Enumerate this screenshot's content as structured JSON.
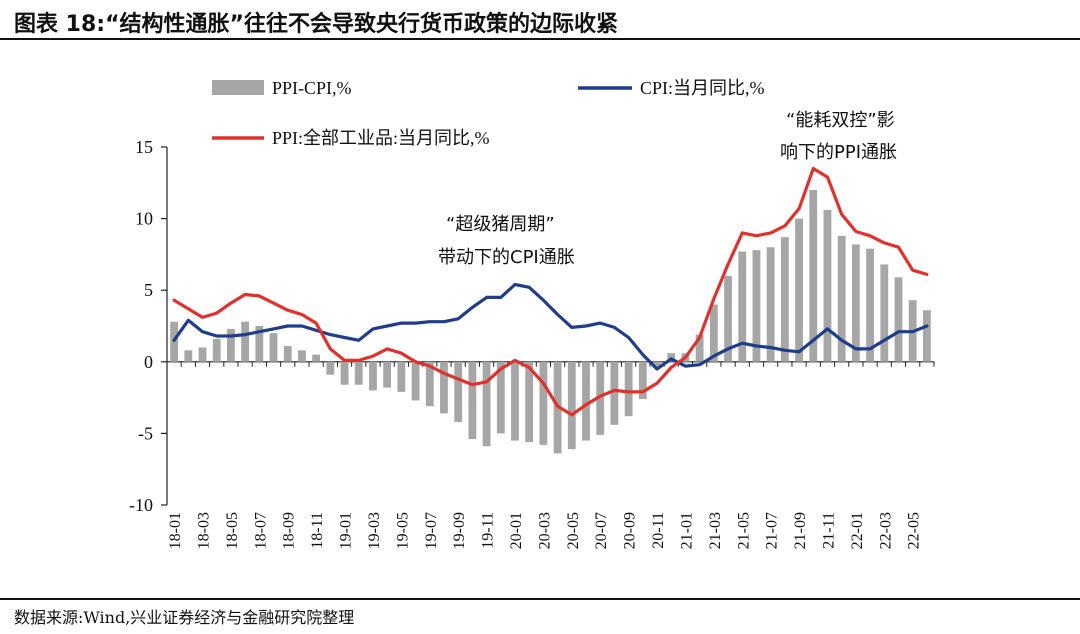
{
  "title": "图表 18:“结构性通胀”往往不会导致央行货币政策的边际收紧",
  "source": "数据来源:Wind,兴业证券经济与金融研究院整理",
  "colors": {
    "bar": "#a6a6a6",
    "cpi": "#1f3d8c",
    "ppi": "#e0312c"
  },
  "chart_data": {
    "type": "bar+line",
    "x": [
      "18-01",
      "18-02",
      "18-03",
      "18-04",
      "18-05",
      "18-06",
      "18-07",
      "18-08",
      "18-09",
      "18-10",
      "18-11",
      "18-12",
      "19-01",
      "19-02",
      "19-03",
      "19-04",
      "19-05",
      "19-06",
      "19-07",
      "19-08",
      "19-09",
      "19-10",
      "19-11",
      "19-12",
      "20-01",
      "20-02",
      "20-03",
      "20-04",
      "20-05",
      "20-06",
      "20-07",
      "20-08",
      "20-09",
      "20-10",
      "20-11",
      "20-12",
      "21-01",
      "21-02",
      "21-03",
      "21-04",
      "21-05",
      "21-06",
      "21-07",
      "21-08",
      "21-09",
      "21-10",
      "21-11",
      "21-12",
      "22-01",
      "22-02",
      "22-03",
      "22-04",
      "22-05",
      "22-06"
    ],
    "tick_labels": [
      "18-01",
      "18-03",
      "18-05",
      "18-07",
      "18-09",
      "18-11",
      "19-01",
      "19-03",
      "19-05",
      "19-07",
      "19-09",
      "19-11",
      "20-01",
      "20-03",
      "20-05",
      "20-07",
      "20-09",
      "20-11",
      "21-01",
      "21-03",
      "21-05",
      "21-07",
      "21-09",
      "21-11",
      "22-01",
      "22-03",
      "22-05"
    ],
    "ylim": [
      -10,
      15
    ],
    "yticks": [
      -10,
      -5,
      0,
      5,
      10,
      15
    ],
    "series": [
      {
        "name": "PPI-CPI,%",
        "kind": "bar",
        "values": [
          2.8,
          0.8,
          1.0,
          1.6,
          2.3,
          2.8,
          2.5,
          2.0,
          1.1,
          0.8,
          0.5,
          -0.9,
          -1.6,
          -1.6,
          -2.0,
          -1.8,
          -2.1,
          -2.7,
          -3.1,
          -3.6,
          -4.2,
          -5.4,
          -5.9,
          -5.0,
          -5.5,
          -5.6,
          -5.8,
          -6.4,
          -6.1,
          -5.5,
          -5.1,
          -4.4,
          -3.8,
          -2.6,
          -0.4,
          0.6,
          0.6,
          1.9,
          4.0,
          6.0,
          7.7,
          7.8,
          8.0,
          8.7,
          10.0,
          12.0,
          10.6,
          8.8,
          8.2,
          7.9,
          6.8,
          5.9,
          4.3,
          3.6
        ]
      },
      {
        "name": "CPI:当月同比,%",
        "kind": "line",
        "values": [
          1.5,
          2.9,
          2.1,
          1.8,
          1.8,
          1.9,
          2.1,
          2.3,
          2.5,
          2.5,
          2.2,
          1.9,
          1.7,
          1.5,
          2.3,
          2.5,
          2.7,
          2.7,
          2.8,
          2.8,
          3.0,
          3.8,
          4.5,
          4.5,
          5.4,
          5.2,
          4.3,
          3.3,
          2.4,
          2.5,
          2.7,
          2.4,
          1.7,
          0.5,
          -0.5,
          0.2,
          -0.3,
          -0.2,
          0.4,
          0.9,
          1.3,
          1.1,
          1.0,
          0.8,
          0.7,
          1.5,
          2.3,
          1.5,
          0.9,
          0.9,
          1.5,
          2.1,
          2.1,
          2.5
        ]
      },
      {
        "name": "PPI:全部工业品:当月同比,%",
        "kind": "line",
        "values": [
          4.3,
          3.7,
          3.1,
          3.4,
          4.1,
          4.7,
          4.6,
          4.1,
          3.6,
          3.3,
          2.7,
          0.9,
          0.1,
          0.1,
          0.4,
          0.9,
          0.6,
          0.0,
          -0.3,
          -0.8,
          -1.2,
          -1.6,
          -1.4,
          -0.5,
          0.1,
          -0.4,
          -1.5,
          -3.1,
          -3.7,
          -3.0,
          -2.4,
          -2.0,
          -2.1,
          -2.1,
          -1.5,
          -0.4,
          0.3,
          1.7,
          4.4,
          6.8,
          9.0,
          8.8,
          9.0,
          9.5,
          10.7,
          13.5,
          12.9,
          10.3,
          9.1,
          8.8,
          8.3,
          8.0,
          6.4,
          6.1
        ]
      }
    ],
    "legend": [
      "PPI-CPI,%",
      "CPI:当月同比,%",
      "PPI:全部工业品:当月同比,%"
    ],
    "annotations": [
      {
        "lines": [
          "“超级猪周期”",
          "带动下的CPI通胀"
        ]
      },
      {
        "lines": [
          "“能耗双控”影",
          "响下的PPI通胀"
        ]
      }
    ]
  }
}
